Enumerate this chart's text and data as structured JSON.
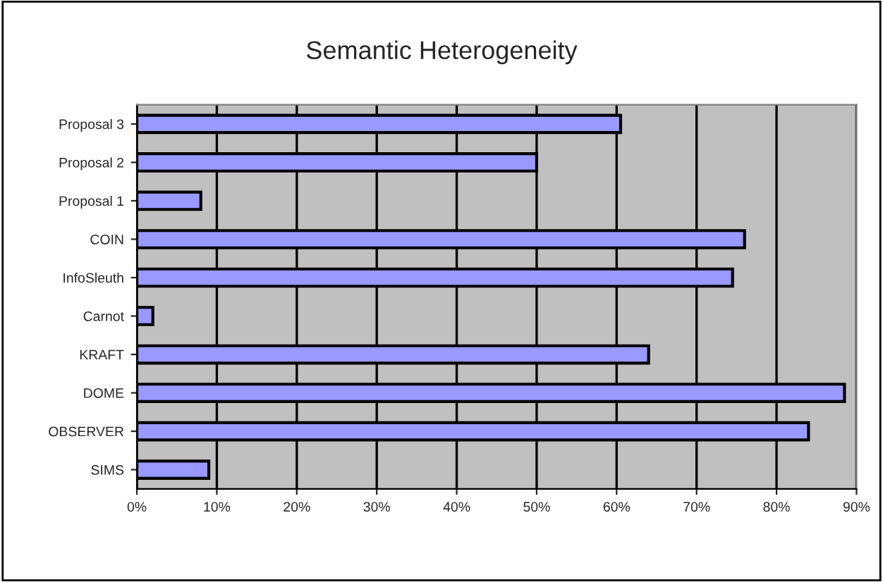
{
  "chart_data": {
    "type": "bar",
    "orientation": "horizontal",
    "title": "Semantic Heterogeneity",
    "categories": [
      "Proposal 3",
      "Proposal 2",
      "Proposal 1",
      "COIN",
      "InfoSleuth",
      "Carnot",
      "KRAFT",
      "DOME",
      "OBSERVER",
      "SIMS"
    ],
    "values": [
      60.5,
      50,
      8,
      76,
      74.5,
      2,
      64,
      88.5,
      84,
      9
    ],
    "color": "#9999ff",
    "xlim": [
      0,
      90
    ],
    "xticks": [
      {
        "value": 0,
        "label": "0%"
      },
      {
        "value": 10,
        "label": "10%"
      },
      {
        "value": 20,
        "label": "20%"
      },
      {
        "value": 30,
        "label": "30%"
      },
      {
        "value": 40,
        "label": "40%"
      },
      {
        "value": 50,
        "label": "50%"
      },
      {
        "value": 60,
        "label": "60%"
      },
      {
        "value": 70,
        "label": "70%"
      },
      {
        "value": 80,
        "label": "80%"
      },
      {
        "value": 90,
        "label": "90%"
      }
    ],
    "grid": "x",
    "legend": false
  }
}
